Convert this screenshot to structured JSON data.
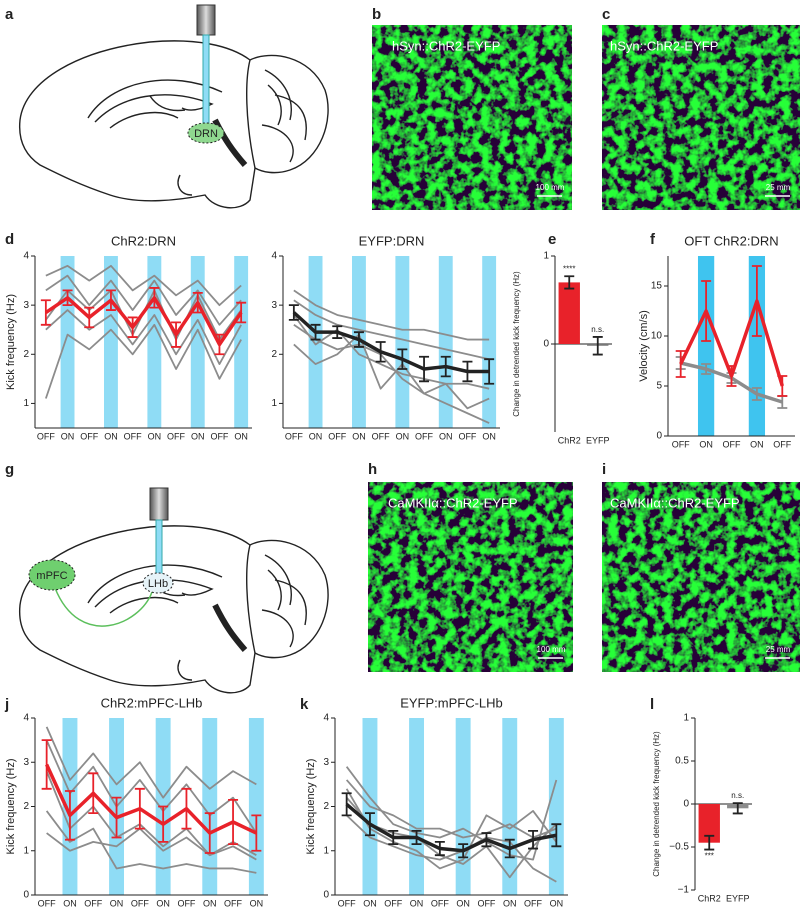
{
  "panel_labels": [
    "a",
    "b",
    "c",
    "d",
    "e",
    "f",
    "g",
    "h",
    "i",
    "j",
    "k",
    "l"
  ],
  "images": [
    {
      "label": "hSyn::ChR2-EYFP",
      "scale": "100 mm"
    },
    {
      "label": "hSyn::ChR2-EYFP",
      "scale": "25 mm"
    },
    {
      "label": "CaMKIIα::ChR2-EYFP",
      "scale": "100 mm"
    },
    {
      "label": "CaMKIIα::ChR2-EYFP",
      "scale": "25 mm"
    }
  ],
  "diagrams": [
    {
      "labels": [
        "DRN"
      ]
    },
    {
      "labels": [
        "mPFC",
        "LHb"
      ]
    }
  ],
  "chart_data": [
    {
      "type": "line",
      "title": "ChR2:DRN",
      "title_color": "#e8222a",
      "ylabel": "Kick frequency (Hz)",
      "categories": [
        "OFF",
        "ON",
        "OFF",
        "ON",
        "OFF",
        "ON",
        "OFF",
        "ON",
        "OFF",
        "ON"
      ],
      "band_color": "#8fdcf5",
      "ylim": [
        0.5,
        4
      ],
      "yticks": [
        1,
        2,
        3,
        4
      ],
      "series": [
        {
          "color": "#8c8c8c",
          "values": [
            3.6,
            3.8,
            3.5,
            3.8,
            3.3,
            3.6,
            3.2,
            3.5,
            3.0,
            3.4
          ]
        },
        {
          "color": "#8c8c8c",
          "values": [
            3.3,
            3.6,
            3.0,
            3.5,
            2.9,
            3.5,
            2.8,
            3.3,
            2.6,
            3.1
          ]
        },
        {
          "color": "#8c8c8c",
          "values": [
            2.5,
            2.9,
            2.5,
            2.8,
            2.2,
            2.8,
            2.0,
            2.7,
            1.8,
            2.6
          ]
        },
        {
          "color": "#8c8c8c",
          "values": [
            1.1,
            2.4,
            2.1,
            2.5,
            2.0,
            2.6,
            1.7,
            2.5,
            1.5,
            2.3
          ]
        },
        {
          "color": "#8c8c8c",
          "values": [
            2.7,
            3.3,
            2.9,
            3.3,
            2.4,
            3.3,
            2.3,
            3.2,
            2.3,
            2.9
          ]
        },
        {
          "color": "#e8222a",
          "values": [
            2.85,
            3.15,
            2.75,
            3.1,
            2.55,
            3.15,
            2.4,
            3.05,
            2.2,
            2.85
          ],
          "errors": [
            0.25,
            0.15,
            0.2,
            0.2,
            0.2,
            0.2,
            0.25,
            0.2,
            0.2,
            0.2
          ]
        }
      ]
    },
    {
      "type": "line",
      "title": "EYFP:DRN",
      "title_color": "#222222",
      "categories": [
        "OFF",
        "ON",
        "OFF",
        "ON",
        "OFF",
        "ON",
        "OFF",
        "ON",
        "OFF",
        "ON"
      ],
      "band_color": "#8fdcf5",
      "ylim": [
        0.5,
        4
      ],
      "yticks": [
        1,
        2,
        3,
        4
      ],
      "series": [
        {
          "color": "#8c8c8c",
          "values": [
            3.3,
            3.0,
            2.8,
            2.7,
            2.6,
            2.5,
            2.5,
            2.4,
            2.3,
            2.3
          ]
        },
        {
          "color": "#8c8c8c",
          "values": [
            3.1,
            2.8,
            2.6,
            2.5,
            2.4,
            2.3,
            2.2,
            2.1,
            2.0,
            1.9
          ]
        },
        {
          "color": "#8c8c8c",
          "values": [
            2.8,
            2.2,
            2.5,
            2.0,
            1.8,
            1.6,
            1.5,
            1.4,
            1.4,
            1.3
          ]
        },
        {
          "color": "#8c8c8c",
          "values": [
            2.2,
            1.8,
            2.0,
            2.4,
            1.3,
            1.8,
            1.2,
            1.0,
            0.8,
            0.6
          ]
        },
        {
          "color": "#8c8c8c",
          "values": [
            2.6,
            2.3,
            2.1,
            2.2,
            2.0,
            1.5,
            1.2,
            1.4,
            0.9,
            1.1
          ]
        },
        {
          "color": "#222222",
          "values": [
            2.85,
            2.45,
            2.45,
            2.3,
            2.05,
            1.9,
            1.7,
            1.75,
            1.65,
            1.65
          ],
          "errors": [
            0.15,
            0.15,
            0.12,
            0.15,
            0.2,
            0.2,
            0.25,
            0.2,
            0.2,
            0.25
          ]
        }
      ]
    },
    {
      "type": "bar",
      "ylabel": "Change in detrended kick frequency (Hz)",
      "categories": [
        "ChR2",
        "EYFP"
      ],
      "values": [
        0.7,
        -0.02
      ],
      "errors": [
        0.07,
        0.1
      ],
      "colors": [
        "#e8222a",
        "#777777"
      ],
      "annotations": [
        "****",
        "n.s."
      ],
      "ylim": [
        -1,
        1
      ],
      "yticks": [
        0,
        1
      ]
    },
    {
      "type": "line",
      "title": "OFT ChR2:DRN",
      "title_color": "#222222",
      "ylabel": "Velocity (cm/s)",
      "categories": [
        "OFF",
        "ON",
        "OFF",
        "ON",
        "OFF"
      ],
      "band_color": "#3fc4ef",
      "ylim": [
        0,
        18
      ],
      "yticks": [
        0,
        5,
        10,
        15
      ],
      "series": [
        {
          "color": "#8c8c8c",
          "values": [
            7.3,
            6.7,
            5.8,
            4.2,
            3.4
          ],
          "errors": [
            0.6,
            0.5,
            0.5,
            0.6,
            0.6
          ]
        },
        {
          "color": "#e8222a",
          "values": [
            7.2,
            12.5,
            6.0,
            13.5,
            5.0
          ],
          "errors": [
            1.3,
            3.0,
            1.0,
            3.5,
            1.0
          ]
        }
      ]
    },
    {
      "type": "line",
      "title": "ChR2:mPFC-LHb",
      "title_color": "#e8222a",
      "ylabel": "Kick frequency (Hz)",
      "categories": [
        "OFF",
        "ON",
        "OFF",
        "ON",
        "OFF",
        "ON",
        "OFF",
        "ON",
        "OFF",
        "ON"
      ],
      "band_color": "#8fdcf5",
      "ylim": [
        0,
        4
      ],
      "yticks": [
        0,
        1,
        2,
        3,
        4
      ],
      "series": [
        {
          "color": "#8c8c8c",
          "values": [
            3.8,
            2.6,
            3.2,
            2.5,
            3.0,
            2.2,
            2.9,
            2.4,
            2.8,
            2.5
          ]
        },
        {
          "color": "#8c8c8c",
          "values": [
            3.5,
            2.3,
            2.9,
            2.0,
            2.6,
            1.9,
            2.5,
            1.8,
            2.2,
            1.4
          ]
        },
        {
          "color": "#8c8c8c",
          "values": [
            2.8,
            1.5,
            2.0,
            1.3,
            1.6,
            1.1,
            1.5,
            0.9,
            1.1,
            0.8
          ]
        },
        {
          "color": "#8c8c8c",
          "values": [
            1.9,
            1.2,
            1.5,
            0.6,
            0.7,
            0.6,
            0.7,
            0.6,
            0.6,
            0.5
          ]
        },
        {
          "color": "#8c8c8c",
          "values": [
            1.4,
            1.0,
            1.2,
            1.1,
            1.5,
            1.0,
            1.3,
            0.9,
            1.2,
            0.9
          ]
        },
        {
          "color": "#e8222a",
          "values": [
            2.95,
            1.8,
            2.3,
            1.75,
            1.95,
            1.6,
            1.95,
            1.4,
            1.65,
            1.4
          ],
          "errors": [
            0.55,
            0.55,
            0.45,
            0.45,
            0.45,
            0.4,
            0.45,
            0.45,
            0.5,
            0.4
          ]
        }
      ]
    },
    {
      "type": "line",
      "title": "EYFP:mPFC-LHb",
      "title_color": "#222222",
      "ylabel": "Kick frequency (Hz)",
      "categories": [
        "OFF",
        "ON",
        "OFF",
        "ON",
        "OFF",
        "ON",
        "OFF",
        "ON",
        "OFF",
        "ON"
      ],
      "band_color": "#8fdcf5",
      "ylim": [
        0,
        4
      ],
      "yticks": [
        0,
        1,
        2,
        3,
        4
      ],
      "series": [
        {
          "color": "#8c8c8c",
          "values": [
            2.9,
            2.2,
            1.6,
            1.4,
            1.3,
            1.5,
            1.2,
            0.9,
            0.8,
            2.6
          ]
        },
        {
          "color": "#8c8c8c",
          "values": [
            2.6,
            2.0,
            1.8,
            1.5,
            1.5,
            1.3,
            1.4,
            1.6,
            1.3,
            1.5
          ]
        },
        {
          "color": "#8c8c8c",
          "values": [
            2.2,
            1.6,
            1.4,
            1.3,
            0.9,
            0.7,
            1.1,
            0.4,
            1.1,
            1.6
          ]
        },
        {
          "color": "#8c8c8c",
          "values": [
            1.8,
            1.3,
            1.1,
            0.9,
            0.8,
            1.0,
            1.3,
            1.2,
            0.6,
            0.3
          ]
        },
        {
          "color": "#8c8c8c",
          "values": [
            2.4,
            1.5,
            1.2,
            1.0,
            0.6,
            0.8,
            1.8,
            1.5,
            1.9,
            1.2
          ]
        },
        {
          "color": "#222222",
          "values": [
            2.05,
            1.6,
            1.3,
            1.3,
            1.05,
            1.0,
            1.25,
            1.05,
            1.25,
            1.35
          ],
          "errors": [
            0.25,
            0.25,
            0.15,
            0.15,
            0.15,
            0.15,
            0.15,
            0.2,
            0.2,
            0.25
          ]
        }
      ]
    },
    {
      "type": "bar",
      "ylabel": "Change in detrended kick frequency (Hz)",
      "categories": [
        "ChR2",
        "EYFP"
      ],
      "values": [
        -0.45,
        -0.05
      ],
      "errors": [
        0.08,
        0.06
      ],
      "colors": [
        "#e8222a",
        "#8c8c8c"
      ],
      "annotations": [
        "***",
        "n.s."
      ],
      "ylim": [
        -1,
        1
      ],
      "yticks": [
        {
          "value": -1,
          "label": "−1"
        },
        {
          "value": -0.5,
          "label": "−0.5"
        },
        0,
        0.5,
        1
      ]
    }
  ]
}
